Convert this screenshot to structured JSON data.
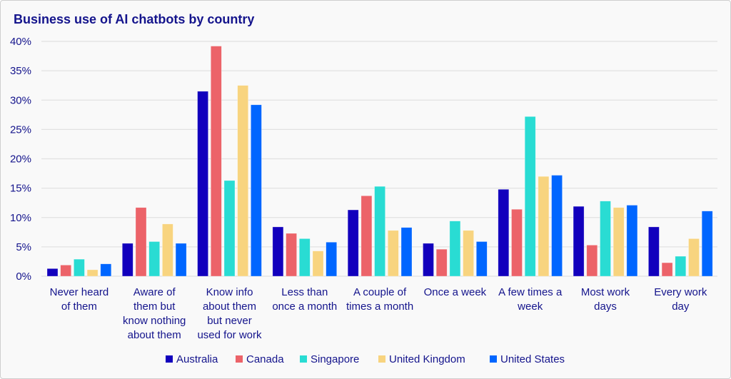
{
  "chart_data": {
    "type": "bar",
    "title": "Business use of AI chatbots by country",
    "xlabel": "",
    "ylabel": "",
    "ylim": [
      0,
      40
    ],
    "yticks": [
      "0%",
      "5%",
      "10%",
      "15%",
      "20%",
      "25%",
      "30%",
      "35%",
      "40%"
    ],
    "grid": true,
    "legend_position": "bottom",
    "categories": [
      [
        "Never heard",
        "of them"
      ],
      [
        "Aware of",
        "them but",
        "know nothing",
        "about them"
      ],
      [
        "Know info",
        "about them",
        "but never",
        "used for work"
      ],
      [
        "Less than",
        "once a month"
      ],
      [
        "A couple of",
        "times a month"
      ],
      [
        "Once a week"
      ],
      [
        "A few times a",
        "week"
      ],
      [
        "Most work",
        "days"
      ],
      [
        "Every work",
        "day"
      ]
    ],
    "series": [
      {
        "name": "Australia",
        "color": "#1200bd",
        "values": [
          1.3,
          5.6,
          31.5,
          8.4,
          11.3,
          5.6,
          14.8,
          11.9,
          8.4
        ]
      },
      {
        "name": "Canada",
        "color": "#ec6369",
        "values": [
          1.9,
          11.7,
          39.2,
          7.3,
          13.7,
          4.6,
          11.4,
          5.3,
          2.3
        ]
      },
      {
        "name": "Singapore",
        "color": "#29dcd3",
        "values": [
          2.9,
          5.9,
          16.3,
          6.4,
          15.3,
          9.4,
          27.2,
          12.8,
          3.4
        ]
      },
      {
        "name": "United Kingdom",
        "color": "#f8d47f",
        "values": [
          1.1,
          8.9,
          32.5,
          4.3,
          7.8,
          7.8,
          17.0,
          11.7,
          6.4
        ]
      },
      {
        "name": "United States",
        "color": "#0066ff",
        "values": [
          2.1,
          5.6,
          29.2,
          5.8,
          8.3,
          5.9,
          17.2,
          12.1,
          11.1
        ]
      }
    ]
  }
}
